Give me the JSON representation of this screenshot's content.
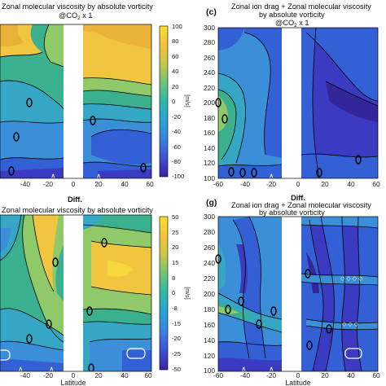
{
  "chart_data": [
    {
      "type": "heatmap",
      "panel_label": "",
      "title_lines": [
        "Zonal molecular viscosity by absolute vorticity",
        "@CO2 x 1"
      ],
      "x": [
        -60,
        -40,
        -20,
        0,
        20,
        40,
        60
      ],
      "x_tick_labels": [
        "-40",
        "-20",
        "0",
        "20",
        "40",
        "60"
      ],
      "xlim": [
        -60,
        60
      ],
      "ylim": [
        100,
        300
      ],
      "masked_x_range": [
        -10,
        10
      ],
      "colorbar": {
        "ticks": [
          "100",
          "80",
          "60",
          "40",
          "20",
          "0",
          "-20",
          "-40",
          "-60",
          "-80",
          "-100"
        ],
        "label": "[m/s]",
        "range": [
          -100,
          100
        ]
      },
      "contour_labels": [
        "0",
        "0",
        "0",
        "0",
        "0"
      ]
    },
    {
      "type": "heatmap",
      "panel_label": "(c)",
      "title_lines": [
        "Zonal ion drag + Zonal molecular viscosity",
        "by absolute vorticity",
        "@CO2 x 1"
      ],
      "y_ticks": [
        300,
        280,
        260,
        240,
        220,
        200,
        180,
        160,
        140,
        120,
        100
      ],
      "y_tick_labels": [
        "300",
        "280",
        "260",
        "240",
        "220",
        "200",
        "180",
        "160",
        "140",
        "120",
        "100"
      ],
      "x_tick_labels": [
        "-60",
        "-40",
        "-20",
        "0",
        "20",
        "40",
        "60"
      ],
      "xlim": [
        -60,
        60
      ],
      "ylim": [
        100,
        300
      ],
      "masked_x_range": [
        -10,
        10
      ],
      "contour_labels": [
        "0",
        "0",
        "0",
        "0",
        "0",
        "0",
        "0"
      ]
    },
    {
      "type": "heatmap",
      "panel_label": "",
      "title_lines": [
        "Diff.",
        "Zonal molecular viscosity by absolute vorticity"
      ],
      "x_tick_labels": [
        "-40",
        "-20",
        "0",
        "20",
        "40",
        "60"
      ],
      "xlabel": "Latitude",
      "xlim": [
        -60,
        60
      ],
      "ylim": [
        100,
        300
      ],
      "masked_x_range": [
        -10,
        10
      ],
      "colorbar": {
        "ticks": [
          "50",
          "25",
          "20",
          "15",
          "8",
          "0",
          "-8",
          "-15",
          "-20",
          "-25",
          "-50"
        ],
        "label": "[m/s]",
        "range": [
          -50,
          50
        ]
      },
      "contour_labels": [
        "0",
        "0",
        "0",
        "0",
        "0",
        "0"
      ]
    },
    {
      "type": "heatmap",
      "panel_label": "(g)",
      "title_lines": [
        "Diff.",
        "Zonal ion drag + Zonal molecular viscosity",
        "by absolute vorticity"
      ],
      "y_tick_labels": [
        "300",
        "280",
        "260",
        "240",
        "220",
        "200",
        "180",
        "160",
        "140",
        "120",
        "100"
      ],
      "x_tick_labels": [
        "-60",
        "-40",
        "-20",
        "0",
        "20",
        "40",
        "60"
      ],
      "xlabel": "Latitude",
      "xlim": [
        -60,
        60
      ],
      "ylim": [
        100,
        300
      ],
      "masked_x_range": [
        -10,
        10
      ],
      "contour_labels": [
        "0",
        "0",
        "0",
        "0",
        "0",
        "0",
        "0",
        "0"
      ]
    }
  ],
  "colors": {
    "yellow": "#f6d83a",
    "gold": "#e9b83a",
    "light_green": "#8fc96a",
    "teal": "#3bb08f",
    "cyan": "#35a7c4",
    "sky": "#3b8fd9",
    "blue": "#3460d6",
    "indigo": "#3a3bc0",
    "deep": "#33269a"
  }
}
